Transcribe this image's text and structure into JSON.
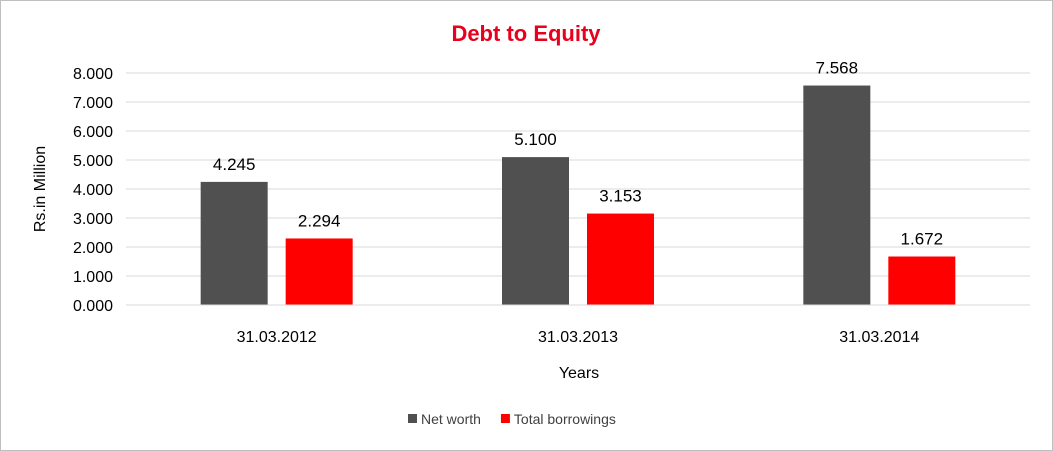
{
  "chart_data": {
    "type": "bar",
    "title": "Debt to Equity",
    "title_color": "#e8001c",
    "xlabel": "Years",
    "ylabel": "Rs.in Million",
    "categories": [
      "31.03.2012",
      "31.03.2013",
      "31.03.2014"
    ],
    "series": [
      {
        "name": "Net worth",
        "color": "#505050",
        "values": [
          4.245,
          5.1,
          7.568
        ],
        "labels": [
          "4.245",
          "5.100",
          "7.568"
        ]
      },
      {
        "name": "Total borrowings",
        "color": "#ff0000",
        "values": [
          2.294,
          3.153,
          1.672
        ],
        "labels": [
          "2.294",
          "3.153",
          "1.672"
        ]
      }
    ],
    "ylim": [
      0,
      8
    ],
    "yticks": [
      "0.000",
      "1.000",
      "2.000",
      "3.000",
      "4.000",
      "5.000",
      "6.000",
      "7.000",
      "8.000"
    ],
    "grid": true,
    "legend_position": "bottom"
  }
}
